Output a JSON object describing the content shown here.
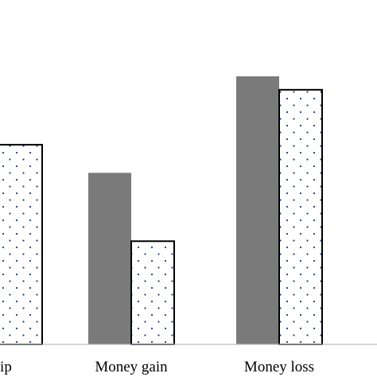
{
  "chart_data": {
    "type": "bar",
    "categories": [
      "ship",
      "Money gain",
      "Money loss"
    ],
    "series": [
      {
        "values": [
          null,
          0.64,
          1.0
        ],
        "color": "#7a7a7a",
        "pattern": "solid"
      },
      {
        "values": [
          0.745,
          0.385,
          0.95
        ],
        "color": "#ffffff",
        "pattern": "dotted",
        "dot_color": "#1f3b73"
      }
    ],
    "grid": false,
    "legend": "none",
    "ylim": [
      0,
      1.1
    ],
    "note": "first category label is cropped by the image edge"
  }
}
